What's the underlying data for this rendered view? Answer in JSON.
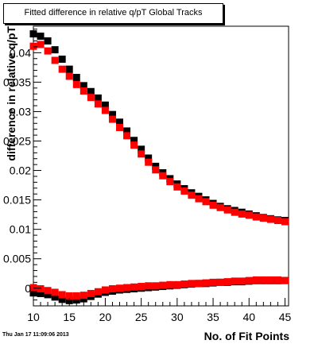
{
  "stamp": "Thu Jan 17 11:09:06 2013",
  "chart_data": {
    "type": "scatter",
    "title": "Fitted difference in relative q/pT  Global Tracks",
    "xlabel": "No. of Fit Points",
    "ylabel": "difference in relative q/pT",
    "xlim": [
      10,
      45.5
    ],
    "ylim": [
      -0.003,
      0.0445
    ],
    "xticks": [
      "10",
      "15",
      "20",
      "25",
      "30",
      "35",
      "40",
      "45"
    ],
    "yticks": [
      "0",
      "0.005",
      "0.01",
      "0.015",
      "0.02",
      "0.025",
      "0.03",
      "0.035",
      "0.04"
    ],
    "grid": false,
    "marker": "square",
    "series": [
      {
        "color": "#000000",
        "x": [
          10,
          11,
          12,
          13,
          14,
          15,
          16,
          17,
          18,
          19,
          20,
          21,
          22,
          23,
          24,
          25,
          26,
          27,
          28,
          29,
          30,
          31,
          32,
          33,
          34,
          35,
          36,
          37,
          38,
          39,
          40,
          41,
          42,
          43,
          44,
          45
        ],
        "values": [
          0.0432,
          0.0428,
          0.042,
          0.0405,
          0.0389,
          0.0372,
          0.0358,
          0.0344,
          0.0334,
          0.0323,
          0.0311,
          0.0295,
          0.0282,
          0.0267,
          0.0251,
          0.0236,
          0.0221,
          0.0207,
          0.0196,
          0.0186,
          0.0177,
          0.0169,
          0.0162,
          0.0156,
          0.015,
          0.0144,
          0.0139,
          0.0135,
          0.0132,
          0.0129,
          0.0126,
          0.0123,
          0.012,
          0.0118,
          0.0116,
          0.0115
        ]
      },
      {
        "color": "#ff0000",
        "x": [
          10,
          11,
          12,
          13,
          14,
          15,
          16,
          17,
          18,
          19,
          20,
          21,
          22,
          23,
          24,
          25,
          26,
          27,
          28,
          29,
          30,
          31,
          32,
          33,
          34,
          35,
          36,
          37,
          38,
          39,
          40,
          41,
          42,
          43,
          44,
          45
        ],
        "values": [
          0.0411,
          0.0414,
          0.0403,
          0.0387,
          0.0372,
          0.036,
          0.0346,
          0.0335,
          0.0324,
          0.0313,
          0.0302,
          0.0287,
          0.0273,
          0.0259,
          0.0243,
          0.0228,
          0.0214,
          0.0201,
          0.0191,
          0.0181,
          0.0172,
          0.0165,
          0.0158,
          0.0152,
          0.0147,
          0.0141,
          0.0137,
          0.0133,
          0.0129,
          0.0126,
          0.0124,
          0.0121,
          0.0119,
          0.0117,
          0.0115,
          0.0113
        ]
      },
      {
        "color": "#000000",
        "x": [
          10,
          11,
          12,
          13,
          14,
          15,
          16,
          17,
          18,
          19,
          20,
          21,
          22,
          23,
          24,
          25,
          26,
          27,
          28,
          29,
          30,
          31,
          32,
          33,
          34,
          35,
          36,
          37,
          38,
          39,
          40,
          41,
          42,
          43,
          44,
          45
        ],
        "values": [
          -0.0008,
          -0.0009,
          -0.0011,
          -0.0015,
          -0.0019,
          -0.0021,
          -0.002,
          -0.0018,
          -0.0014,
          -0.001,
          -0.0007,
          -0.0005,
          -0.0003,
          -0.0002,
          -0.0001,
          0.0,
          0.0001,
          0.0002,
          0.0003,
          0.0004,
          0.0005,
          0.0006,
          0.0007,
          0.0008,
          0.0008,
          0.0009,
          0.001,
          0.001,
          0.0011,
          0.0011,
          0.0012,
          0.0013,
          0.0013,
          0.0013,
          0.0013,
          0.0013
        ]
      },
      {
        "color": "#ff0000",
        "x": [
          10,
          11,
          12,
          13,
          14,
          15,
          16,
          17,
          18,
          19,
          20,
          21,
          22,
          23,
          24,
          25,
          26,
          27,
          28,
          29,
          30,
          31,
          32,
          33,
          34,
          35,
          36,
          37,
          38,
          39,
          40,
          41,
          42,
          43,
          44,
          45
        ],
        "values": [
          0.0001,
          -0.0001,
          -0.0004,
          -0.0007,
          -0.0011,
          -0.0013,
          -0.0013,
          -0.0012,
          -0.0009,
          -0.0006,
          -0.0003,
          -0.0001,
          0.0,
          0.0001,
          0.0002,
          0.0003,
          0.0004,
          0.0004,
          0.0005,
          0.0006,
          0.0006,
          0.0007,
          0.0008,
          0.0008,
          0.0009,
          0.001,
          0.001,
          0.0011,
          0.0012,
          0.0012,
          0.0013,
          0.0014,
          0.0014,
          0.0014,
          0.0014,
          0.0013
        ]
      }
    ]
  }
}
